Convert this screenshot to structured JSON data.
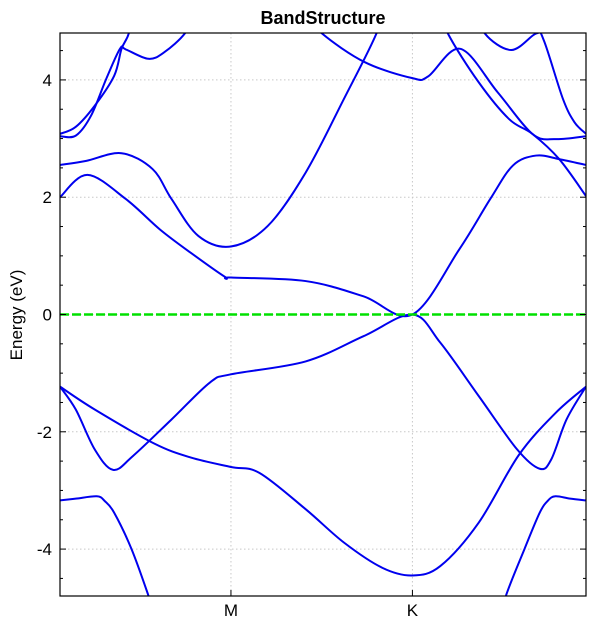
{
  "chart_data": {
    "type": "line",
    "title": "BandStructure",
    "xlabel": "",
    "ylabel": "Energy (eV)",
    "xlim": [
      0,
      1
    ],
    "ylim": [
      -4.8,
      4.8
    ],
    "grid": true,
    "xticks": [
      {
        "label": "M",
        "value": 0.325
      },
      {
        "label": "K",
        "value": 0.67
      }
    ],
    "yticks": [
      {
        "label": "-4",
        "value": -4
      },
      {
        "label": "-2",
        "value": -2
      },
      {
        "label": "0",
        "value": 0
      },
      {
        "label": "2",
        "value": 2
      },
      {
        "label": "4",
        "value": 4
      }
    ],
    "fermi_level": {
      "value": 0,
      "color": "#00e000",
      "style": "dashed"
    },
    "band_color": "#0000ee",
    "bands": [
      {
        "points": [
          [
            0,
            -3.17
          ],
          [
            0.03,
            -3.14
          ],
          [
            0.07,
            -3.1
          ],
          [
            0.085,
            -3.18
          ],
          [
            0.103,
            -3.38
          ],
          [
            0.136,
            -4.0
          ],
          [
            0.168,
            -4.79
          ],
          [
            0.19,
            -5.4
          ]
        ]
      },
      {
        "points": [
          [
            0.83,
            -5.4
          ],
          [
            0.848,
            -4.79
          ],
          [
            0.883,
            -4.0
          ],
          [
            0.912,
            -3.38
          ],
          [
            0.928,
            -3.17
          ],
          [
            0.942,
            -3.1
          ],
          [
            0.97,
            -3.14
          ],
          [
            1,
            -3.17
          ]
        ]
      },
      {
        "points": [
          [
            0,
            -1.23
          ],
          [
            0.066,
            -1.62
          ],
          [
            0.179,
            -2.2
          ],
          [
            0.249,
            -2.44
          ],
          [
            0.325,
            -2.6
          ],
          [
            0.379,
            -2.7
          ],
          [
            0.467,
            -3.32
          ],
          [
            0.54,
            -3.89
          ],
          [
            0.613,
            -4.32
          ],
          [
            0.67,
            -4.45
          ],
          [
            0.723,
            -4.29
          ],
          [
            0.796,
            -3.55
          ],
          [
            0.872,
            -2.4
          ],
          [
            0.942,
            -1.68
          ],
          [
            1,
            -1.23
          ]
        ]
      },
      {
        "points": [
          [
            0,
            -1.23
          ],
          [
            0.03,
            -1.62
          ],
          [
            0.066,
            -2.3
          ],
          [
            0.101,
            -2.65
          ],
          [
            0.139,
            -2.41
          ],
          [
            0.212,
            -1.79
          ],
          [
            0.285,
            -1.16
          ],
          [
            0.325,
            -1.02
          ],
          [
            0.467,
            -0.8
          ],
          [
            0.577,
            -0.37
          ],
          [
            0.67,
            0
          ],
          [
            0.723,
            -0.48
          ],
          [
            0.796,
            -1.39
          ],
          [
            0.869,
            -2.3
          ],
          [
            0.912,
            -2.63
          ],
          [
            0.934,
            -2.47
          ],
          [
            0.963,
            -1.79
          ],
          [
            1,
            -1.23
          ]
        ]
      },
      {
        "points": [
          [
            0,
            2.0
          ],
          [
            0.052,
            2.38
          ],
          [
            0.125,
            1.97
          ],
          [
            0.19,
            1.45
          ],
          [
            0.249,
            1.05
          ],
          [
            0.314,
            0.64
          ],
          [
            0.325,
            0.63
          ],
          [
            0.467,
            0.57
          ],
          [
            0.577,
            0.31
          ],
          [
            0.67,
            0
          ],
          [
            0.759,
            1.11
          ],
          [
            0.818,
            1.97
          ],
          [
            0.861,
            2.54
          ],
          [
            0.905,
            2.71
          ],
          [
            0.949,
            2.65
          ],
          [
            1,
            2.55
          ]
        ]
      },
      {
        "points": [
          [
            0,
            2.55
          ],
          [
            0.05,
            2.62
          ],
          [
            0.117,
            2.75
          ],
          [
            0.176,
            2.48
          ],
          [
            0.212,
            1.97
          ],
          [
            0.263,
            1.34
          ],
          [
            0.325,
            1.16
          ],
          [
            0.395,
            1.51
          ],
          [
            0.467,
            2.42
          ],
          [
            0.54,
            3.68
          ],
          [
            0.602,
            4.8
          ],
          [
            0.62,
            5.4
          ]
        ]
      },
      {
        "points": [
          [
            0.46,
            5.2
          ],
          [
            0.497,
            4.8
          ],
          [
            0.58,
            4.3
          ],
          [
            0.67,
            4.03
          ],
          [
            0.7,
            4.06
          ],
          [
            0.761,
            4.53
          ],
          [
            0.832,
            3.79
          ],
          [
            0.898,
            3.08
          ],
          [
            0.942,
            2.99
          ],
          [
            1,
            3.04
          ]
        ]
      },
      {
        "points": [
          [
            0.72,
            5.3
          ],
          [
            0.737,
            4.8
          ],
          [
            0.796,
            3.96
          ],
          [
            0.854,
            3.33
          ],
          [
            0.898,
            3.08
          ],
          [
            0.949,
            2.65
          ],
          [
            1,
            2.02
          ]
        ]
      },
      {
        "points": [
          [
            0.79,
            5.3
          ],
          [
            0.807,
            4.8
          ],
          [
            0.858,
            4.51
          ],
          [
            0.905,
            4.79
          ],
          [
            0.92,
            4.67
          ],
          [
            0.956,
            3.68
          ],
          [
            0.978,
            3.28
          ],
          [
            1,
            3.08
          ]
        ]
      },
      {
        "points": [
          [
            0,
            3.08
          ],
          [
            0.03,
            3.2
          ],
          [
            0.066,
            3.56
          ],
          [
            0.103,
            4.07
          ],
          [
            0.117,
            4.53
          ],
          [
            0.131,
            4.8
          ],
          [
            0.14,
            5.3
          ]
        ]
      },
      {
        "points": [
          [
            0,
            3.04
          ],
          [
            0.03,
            3.05
          ],
          [
            0.059,
            3.39
          ],
          [
            0.088,
            4.02
          ],
          [
            0.114,
            4.53
          ],
          [
            0.125,
            4.52
          ],
          [
            0.168,
            4.36
          ],
          [
            0.198,
            4.47
          ],
          [
            0.238,
            4.8
          ],
          [
            0.26,
            5.2
          ]
        ]
      }
    ]
  }
}
